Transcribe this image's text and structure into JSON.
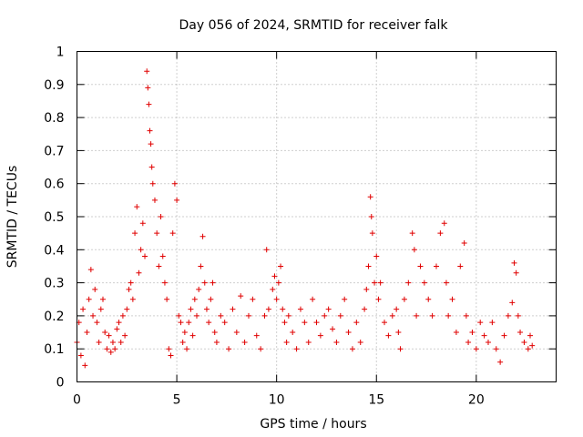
{
  "chart_data": {
    "type": "scatter",
    "title": "Day 056 of 2024, SRMTID for receiver falk",
    "xlabel": "GPS time / hours",
    "ylabel": "SRMTID / TECUs",
    "xlim": [
      0,
      24
    ],
    "ylim": [
      0,
      1
    ],
    "xticks": [
      0,
      5,
      10,
      15,
      20
    ],
    "xtick_labels": [
      "0",
      "5",
      "10",
      "15",
      "20"
    ],
    "yticks": [
      0,
      0.1,
      0.2,
      0.3,
      0.4,
      0.5,
      0.6,
      0.7,
      0.8,
      0.9,
      1
    ],
    "ytick_labels": [
      "0",
      "0.1",
      "0.2",
      "0.3",
      "0.4",
      "0.5",
      "0.6",
      "0.7",
      "0.8",
      "0.9",
      "1"
    ],
    "grid": true,
    "marker": "+",
    "series_color": "#e00000",
    "series": [
      {
        "name": "SRMTID",
        "points": [
          [
            0.0,
            0.12
          ],
          [
            0.1,
            0.18
          ],
          [
            0.2,
            0.08
          ],
          [
            0.3,
            0.22
          ],
          [
            0.4,
            0.05
          ],
          [
            0.5,
            0.15
          ],
          [
            0.6,
            0.25
          ],
          [
            0.7,
            0.34
          ],
          [
            0.8,
            0.2
          ],
          [
            0.9,
            0.28
          ],
          [
            1.0,
            0.18
          ],
          [
            1.1,
            0.12
          ],
          [
            1.2,
            0.22
          ],
          [
            1.3,
            0.25
          ],
          [
            1.4,
            0.15
          ],
          [
            1.5,
            0.1
          ],
          [
            1.6,
            0.14
          ],
          [
            1.7,
            0.09
          ],
          [
            1.8,
            0.12
          ],
          [
            1.9,
            0.1
          ],
          [
            2.0,
            0.16
          ],
          [
            2.1,
            0.18
          ],
          [
            2.2,
            0.12
          ],
          [
            2.3,
            0.2
          ],
          [
            2.4,
            0.14
          ],
          [
            2.5,
            0.22
          ],
          [
            2.6,
            0.28
          ],
          [
            2.7,
            0.3
          ],
          [
            2.8,
            0.25
          ],
          [
            2.9,
            0.45
          ],
          [
            3.0,
            0.53
          ],
          [
            3.1,
            0.33
          ],
          [
            3.2,
            0.4
          ],
          [
            3.3,
            0.48
          ],
          [
            3.4,
            0.38
          ],
          [
            3.5,
            0.94
          ],
          [
            3.55,
            0.89
          ],
          [
            3.6,
            0.84
          ],
          [
            3.65,
            0.76
          ],
          [
            3.7,
            0.72
          ],
          [
            3.75,
            0.65
          ],
          [
            3.8,
            0.6
          ],
          [
            3.9,
            0.55
          ],
          [
            4.0,
            0.45
          ],
          [
            4.1,
            0.35
          ],
          [
            4.2,
            0.5
          ],
          [
            4.3,
            0.38
          ],
          [
            4.4,
            0.3
          ],
          [
            4.5,
            0.25
          ],
          [
            4.6,
            0.1
          ],
          [
            4.7,
            0.08
          ],
          [
            4.8,
            0.45
          ],
          [
            4.9,
            0.6
          ],
          [
            5.0,
            0.55
          ],
          [
            5.1,
            0.2
          ],
          [
            5.2,
            0.18
          ],
          [
            5.3,
            0.12
          ],
          [
            5.4,
            0.15
          ],
          [
            5.5,
            0.1
          ],
          [
            5.6,
            0.18
          ],
          [
            5.7,
            0.22
          ],
          [
            5.8,
            0.14
          ],
          [
            5.9,
            0.25
          ],
          [
            6.0,
            0.2
          ],
          [
            6.1,
            0.28
          ],
          [
            6.2,
            0.35
          ],
          [
            6.3,
            0.44
          ],
          [
            6.4,
            0.3
          ],
          [
            6.5,
            0.22
          ],
          [
            6.6,
            0.18
          ],
          [
            6.7,
            0.25
          ],
          [
            6.8,
            0.3
          ],
          [
            6.9,
            0.15
          ],
          [
            7.0,
            0.12
          ],
          [
            7.2,
            0.2
          ],
          [
            7.4,
            0.18
          ],
          [
            7.6,
            0.1
          ],
          [
            7.8,
            0.22
          ],
          [
            8.0,
            0.15
          ],
          [
            8.2,
            0.26
          ],
          [
            8.4,
            0.12
          ],
          [
            8.6,
            0.2
          ],
          [
            8.8,
            0.25
          ],
          [
            9.0,
            0.14
          ],
          [
            9.2,
            0.1
          ],
          [
            9.4,
            0.2
          ],
          [
            9.5,
            0.4
          ],
          [
            9.6,
            0.22
          ],
          [
            9.8,
            0.28
          ],
          [
            9.9,
            0.32
          ],
          [
            10.0,
            0.25
          ],
          [
            10.1,
            0.3
          ],
          [
            10.2,
            0.35
          ],
          [
            10.3,
            0.22
          ],
          [
            10.4,
            0.18
          ],
          [
            10.5,
            0.12
          ],
          [
            10.6,
            0.2
          ],
          [
            10.8,
            0.15
          ],
          [
            11.0,
            0.1
          ],
          [
            11.2,
            0.22
          ],
          [
            11.4,
            0.18
          ],
          [
            11.6,
            0.12
          ],
          [
            11.8,
            0.25
          ],
          [
            12.0,
            0.18
          ],
          [
            12.2,
            0.14
          ],
          [
            12.4,
            0.2
          ],
          [
            12.6,
            0.22
          ],
          [
            12.8,
            0.16
          ],
          [
            13.0,
            0.12
          ],
          [
            13.2,
            0.2
          ],
          [
            13.4,
            0.25
          ],
          [
            13.6,
            0.15
          ],
          [
            13.8,
            0.1
          ],
          [
            14.0,
            0.18
          ],
          [
            14.2,
            0.12
          ],
          [
            14.4,
            0.22
          ],
          [
            14.5,
            0.28
          ],
          [
            14.6,
            0.35
          ],
          [
            14.7,
            0.56
          ],
          [
            14.75,
            0.5
          ],
          [
            14.8,
            0.45
          ],
          [
            14.9,
            0.3
          ],
          [
            15.0,
            0.38
          ],
          [
            15.1,
            0.25
          ],
          [
            15.2,
            0.3
          ],
          [
            15.4,
            0.18
          ],
          [
            15.6,
            0.14
          ],
          [
            15.8,
            0.2
          ],
          [
            16.0,
            0.22
          ],
          [
            16.1,
            0.15
          ],
          [
            16.2,
            0.1
          ],
          [
            16.4,
            0.25
          ],
          [
            16.6,
            0.3
          ],
          [
            16.8,
            0.45
          ],
          [
            16.9,
            0.4
          ],
          [
            17.0,
            0.2
          ],
          [
            17.2,
            0.35
          ],
          [
            17.4,
            0.3
          ],
          [
            17.6,
            0.25
          ],
          [
            17.8,
            0.2
          ],
          [
            18.0,
            0.35
          ],
          [
            18.2,
            0.45
          ],
          [
            18.4,
            0.48
          ],
          [
            18.5,
            0.3
          ],
          [
            18.6,
            0.2
          ],
          [
            18.8,
            0.25
          ],
          [
            19.0,
            0.15
          ],
          [
            19.2,
            0.35
          ],
          [
            19.4,
            0.42
          ],
          [
            19.5,
            0.2
          ],
          [
            19.6,
            0.12
          ],
          [
            19.8,
            0.15
          ],
          [
            20.0,
            0.1
          ],
          [
            20.2,
            0.18
          ],
          [
            20.4,
            0.14
          ],
          [
            20.6,
            0.12
          ],
          [
            20.8,
            0.18
          ],
          [
            21.0,
            0.1
          ],
          [
            21.2,
            0.06
          ],
          [
            21.4,
            0.14
          ],
          [
            21.6,
            0.2
          ],
          [
            21.8,
            0.24
          ],
          [
            21.9,
            0.36
          ],
          [
            22.0,
            0.33
          ],
          [
            22.1,
            0.2
          ],
          [
            22.2,
            0.15
          ],
          [
            22.4,
            0.12
          ],
          [
            22.6,
            0.1
          ],
          [
            22.7,
            0.14
          ],
          [
            22.8,
            0.11
          ]
        ]
      }
    ]
  }
}
